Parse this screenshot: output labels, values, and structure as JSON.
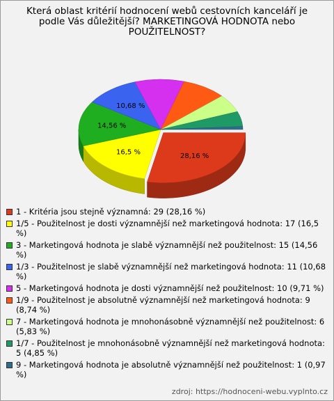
{
  "chart_data": {
    "type": "pie",
    "title": "Která oblast kritérií hodnocení webů cestovních kanceláří je podle Vás důležitější? MARKETINGOVÁ HODNOTA nebo POUŽITELNOST?",
    "categories": [
      "1 - Kritéria jsou stejně významná: 29 (28,16 %)",
      "1/5 - Použitelnost je dosti významnější než marketingová hodnota: 17 (16,5 %)",
      "3 - Marketingová hodnota je slabě významnější než použitelnost: 15 (14,56 %)",
      "1/3 - Použitelnost je slabě významnější než marketingová hodnota: 11 (10,68 %)",
      "5 - Marketingová hodnota je dosti významnější než použitelnost: 10 (9,71 %)",
      "1/9 - Použitelnost je absolutně významnější než marketingová hodnota: 9 (8,74 %)",
      "7 - Marketingová hodnota je mnohonásobně významnější než použitelnost: 6 (5,83 %)",
      "1/7 - Použitelnost je mnohonásobně významnější než marketingová hodnota: 5 (4,85 %)",
      "9 - Marketingová hodnota je absolutně významnější než použitelnost: 1 (0,97 %)"
    ],
    "values": [
      28.16,
      16.5,
      14.56,
      10.68,
      9.71,
      8.74,
      5.83,
      4.85,
      0.97
    ],
    "value_labels": [
      "28,16 %",
      "16,5 %",
      "14,56 %",
      "10,68 %",
      null,
      null,
      null,
      null,
      null
    ],
    "colors": [
      "#dd3a1c",
      "#ffff00",
      "#1fae1f",
      "#3a63f0",
      "#d52ff0",
      "#ff5a14",
      "#ccff88",
      "#1f9a66",
      "#2f6e8a"
    ],
    "source": "zdroj: https://hodnoceni-webu.vyplnto.cz"
  }
}
